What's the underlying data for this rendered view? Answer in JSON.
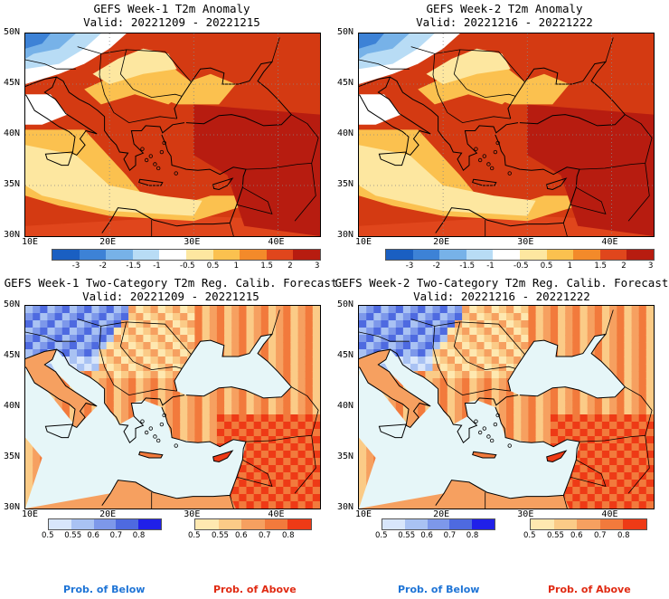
{
  "panels": [
    {
      "title": "GEFS Week-1 T2m Anomaly",
      "valid": "Valid: 20221209 - 20221215",
      "kind": "anom"
    },
    {
      "title": "GEFS Week-2 T2m Anomaly",
      "valid": "Valid: 20221216 - 20221222",
      "kind": "anom"
    },
    {
      "title": "GEFS Week-1 Two-Category T2m Reg. Calib. Forecast",
      "valid": "Valid: 20221209 - 20221215",
      "kind": "prob"
    },
    {
      "title": "GEFS Week-2 Two-Category T2m Reg. Calib. Forecast",
      "valid": "Valid: 20221216 - 20221222",
      "kind": "prob"
    }
  ],
  "axes": {
    "lat_labels": [
      "50N",
      "45N",
      "40N",
      "35N",
      "30N"
    ],
    "lon_labels": [
      "10E",
      "20E",
      "30E",
      "40E"
    ]
  },
  "anom_colorbar": {
    "ticks": [
      "-3",
      "-2",
      "-1.5",
      "-1",
      "-0.5",
      "0.5",
      "1",
      "1.5",
      "2",
      "3"
    ],
    "colors": [
      "#1a5fc2",
      "#3d82d6",
      "#77b2e8",
      "#b8dcf5",
      "#ffffff",
      "#fde7a0",
      "#fbc14f",
      "#f38a2a",
      "#e0461c",
      "#b71c10"
    ]
  },
  "prob_below_colorbar": {
    "ticks": [
      "0.5",
      "0.55",
      "0.6",
      "0.7",
      "0.8"
    ],
    "colors": [
      "#d8e6fb",
      "#a9c2f3",
      "#7d98ea",
      "#4e6ae0",
      "#2020e8"
    ]
  },
  "prob_above_colorbar": {
    "ticks": [
      "0.5",
      "0.55",
      "0.6",
      "0.7",
      "0.8"
    ],
    "colors": [
      "#fee8b0",
      "#fbcb87",
      "#f6a060",
      "#f27a3c",
      "#ee3a16"
    ]
  },
  "prob_labels": {
    "below": "Prob. of Below",
    "above": "Prob. of Above"
  },
  "colors": {
    "below_label": "#1e74d6",
    "above_label": "#e02a12",
    "sea_prob": "#e6f6f8",
    "anom_bg": "#d43a12"
  }
}
